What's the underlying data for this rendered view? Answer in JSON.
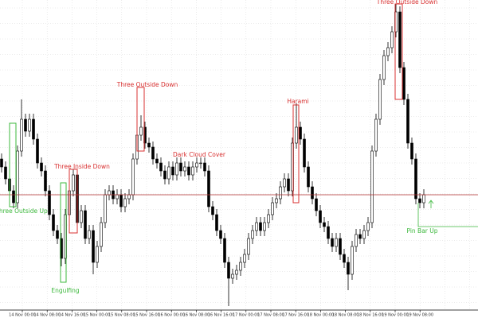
{
  "chart_data": {
    "type": "candlestick",
    "ylim": [
      0,
      400
    ],
    "grid": true,
    "candle_color": "#000000",
    "bull_fill": "#ffffff",
    "price_line_color": "#b03030",
    "xlabels": [
      "14 Nov 00:00",
      "14 Nov 08:00",
      "14 Nov 16:00",
      "15 Nov 00:00",
      "15 Nov 08:00",
      "15 Nov 16:00",
      "16 Nov 00:00",
      "16 Nov 08:00",
      "16 Nov 16:00",
      "17 Nov 00:00",
      "17 Nov 08:00",
      "17 Nov 16:00",
      "18 Nov 00:00",
      "18 Nov 08:00",
      "18 Nov 16:00",
      "19 Nov 00:00",
      "19 Nov 08:00"
    ],
    "candles": [
      [
        200,
        207,
        183,
        190
      ],
      [
        190,
        197,
        168,
        175
      ],
      [
        175,
        182,
        153,
        160
      ],
      [
        160,
        167,
        138,
        145
      ],
      [
        145,
        217,
        138,
        210
      ],
      [
        210,
        275,
        203,
        250
      ],
      [
        250,
        257,
        228,
        235
      ],
      [
        235,
        257,
        228,
        250
      ],
      [
        250,
        257,
        218,
        225
      ],
      [
        225,
        232,
        188,
        195
      ],
      [
        195,
        202,
        178,
        185
      ],
      [
        185,
        192,
        153,
        160
      ],
      [
        160,
        167,
        123,
        130
      ],
      [
        130,
        137,
        103,
        110
      ],
      [
        110,
        117,
        93,
        100
      ],
      [
        100,
        107,
        65,
        75
      ],
      [
        75,
        137,
        68,
        130
      ],
      [
        130,
        167,
        123,
        160
      ],
      [
        160,
        187,
        153,
        180
      ],
      [
        180,
        187,
        113,
        120
      ],
      [
        120,
        142,
        113,
        135
      ],
      [
        135,
        142,
        93,
        100
      ],
      [
        100,
        117,
        93,
        110
      ],
      [
        110,
        117,
        55,
        70
      ],
      [
        70,
        97,
        63,
        90
      ],
      [
        90,
        127,
        83,
        120
      ],
      [
        120,
        162,
        113,
        155
      ],
      [
        155,
        167,
        148,
        160
      ],
      [
        160,
        167,
        143,
        150
      ],
      [
        150,
        162,
        143,
        155
      ],
      [
        155,
        162,
        133,
        140
      ],
      [
        140,
        157,
        133,
        150
      ],
      [
        150,
        162,
        143,
        155
      ],
      [
        155,
        207,
        148,
        200
      ],
      [
        200,
        237,
        193,
        230
      ],
      [
        230,
        255,
        223,
        240
      ],
      [
        240,
        247,
        213,
        220
      ],
      [
        220,
        227,
        208,
        215
      ],
      [
        215,
        222,
        193,
        200
      ],
      [
        200,
        207,
        188,
        195
      ],
      [
        195,
        202,
        178,
        185
      ],
      [
        185,
        192,
        168,
        175
      ],
      [
        175,
        197,
        168,
        190
      ],
      [
        190,
        197,
        173,
        180
      ],
      [
        180,
        202,
        173,
        195
      ],
      [
        195,
        202,
        178,
        185
      ],
      [
        185,
        197,
        178,
        190
      ],
      [
        190,
        197,
        173,
        180
      ],
      [
        180,
        197,
        173,
        190
      ],
      [
        190,
        202,
        183,
        195
      ],
      [
        195,
        202,
        188,
        195
      ],
      [
        195,
        202,
        178,
        185
      ],
      [
        185,
        192,
        133,
        140
      ],
      [
        140,
        147,
        123,
        130
      ],
      [
        130,
        137,
        103,
        110
      ],
      [
        110,
        117,
        93,
        100
      ],
      [
        100,
        107,
        63,
        70
      ],
      [
        70,
        77,
        15,
        50
      ],
      [
        50,
        62,
        43,
        55
      ],
      [
        55,
        67,
        48,
        60
      ],
      [
        60,
        77,
        53,
        70
      ],
      [
        70,
        87,
        63,
        80
      ],
      [
        80,
        107,
        73,
        100
      ],
      [
        100,
        117,
        93,
        110
      ],
      [
        110,
        127,
        103,
        120
      ],
      [
        120,
        127,
        103,
        110
      ],
      [
        110,
        127,
        103,
        120
      ],
      [
        120,
        137,
        113,
        130
      ],
      [
        130,
        152,
        123,
        145
      ],
      [
        145,
        157,
        138,
        150
      ],
      [
        150,
        172,
        143,
        165
      ],
      [
        165,
        182,
        158,
        175
      ],
      [
        175,
        182,
        153,
        160
      ],
      [
        160,
        227,
        153,
        220
      ],
      [
        220,
        270,
        213,
        240
      ],
      [
        240,
        247,
        218,
        225
      ],
      [
        225,
        232,
        183,
        190
      ],
      [
        190,
        197,
        158,
        165
      ],
      [
        165,
        172,
        143,
        150
      ],
      [
        150,
        157,
        128,
        135
      ],
      [
        135,
        142,
        113,
        120
      ],
      [
        120,
        127,
        108,
        115
      ],
      [
        115,
        122,
        93,
        100
      ],
      [
        100,
        107,
        83,
        90
      ],
      [
        90,
        107,
        83,
        100
      ],
      [
        100,
        107,
        73,
        80
      ],
      [
        80,
        87,
        63,
        70
      ],
      [
        70,
        77,
        35,
        55
      ],
      [
        55,
        97,
        48,
        90
      ],
      [
        90,
        112,
        83,
        105
      ],
      [
        105,
        112,
        93,
        100
      ],
      [
        100,
        117,
        93,
        110
      ],
      [
        110,
        127,
        103,
        120
      ],
      [
        120,
        217,
        113,
        210
      ],
      [
        210,
        257,
        203,
        250
      ],
      [
        250,
        307,
        243,
        300
      ],
      [
        300,
        337,
        293,
        330
      ],
      [
        330,
        347,
        323,
        340
      ],
      [
        340,
        367,
        333,
        360
      ],
      [
        360,
        395,
        353,
        385
      ],
      [
        385,
        392,
        308,
        315
      ],
      [
        315,
        322,
        268,
        275
      ],
      [
        275,
        282,
        213,
        220
      ],
      [
        220,
        227,
        193,
        200
      ],
      [
        200,
        207,
        143,
        150
      ],
      [
        150,
        157,
        138,
        145
      ],
      [
        145,
        162,
        138,
        155
      ]
    ],
    "annotations": [
      {
        "label": "Three Outside Up",
        "color": "#3cb83c"
      },
      {
        "label": "Engulfing",
        "color": "#3cb83c"
      },
      {
        "label": "Three Inside Down",
        "color": "#d83030"
      },
      {
        "label": "Three Outside Down",
        "color": "#d83030"
      },
      {
        "label": "Dark Cloud Cover",
        "color": "#d83030"
      },
      {
        "label": "Harami",
        "color": "#d83030"
      },
      {
        "label": "Three Outside Down",
        "color": "#d83030"
      },
      {
        "label": "Pin Bar Up",
        "color": "#3cb83c"
      }
    ]
  }
}
